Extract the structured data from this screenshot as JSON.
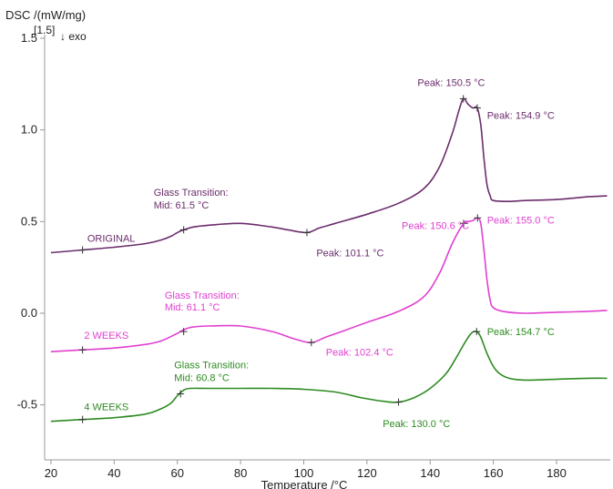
{
  "chart_data": {
    "type": "line",
    "ylabel": "DSC /(mW/mg)",
    "ylabel_sub": "[1.5]",
    "exo_label": "↓ exo",
    "xlabel": "Temperature /°C",
    "xlim": [
      18,
      197
    ],
    "ylim": [
      -0.8,
      1.5
    ],
    "x_ticks": [
      "20",
      "40",
      "60",
      "80",
      "100",
      "120",
      "140",
      "160",
      "180"
    ],
    "y_ticks": [
      "1.5",
      "1.0",
      "0.5",
      "0.0",
      "-0.5"
    ],
    "grid": false,
    "series": [
      {
        "name": "ORIGINAL",
        "color": "#6b2d6b",
        "points": [
          [
            20,
            0.33
          ],
          [
            30,
            0.345
          ],
          [
            40,
            0.36
          ],
          [
            50,
            0.38
          ],
          [
            55,
            0.4
          ],
          [
            58,
            0.42
          ],
          [
            60,
            0.44
          ],
          [
            62,
            0.455
          ],
          [
            65,
            0.47
          ],
          [
            70,
            0.48
          ],
          [
            80,
            0.49
          ],
          [
            90,
            0.47
          ],
          [
            95,
            0.455
          ],
          [
            101,
            0.44
          ],
          [
            105,
            0.465
          ],
          [
            110,
            0.49
          ],
          [
            120,
            0.54
          ],
          [
            130,
            0.6
          ],
          [
            138,
            0.68
          ],
          [
            143,
            0.8
          ],
          [
            147,
            0.98
          ],
          [
            149,
            1.1
          ],
          [
            150.5,
            1.17
          ],
          [
            152,
            1.14
          ],
          [
            153.5,
            1.12
          ],
          [
            154.9,
            1.12
          ],
          [
            156,
            1.03
          ],
          [
            157,
            0.85
          ],
          [
            158,
            0.7
          ],
          [
            159,
            0.64
          ],
          [
            160,
            0.615
          ],
          [
            165,
            0.61
          ],
          [
            170,
            0.615
          ],
          [
            180,
            0.62
          ],
          [
            190,
            0.635
          ],
          [
            196,
            0.64
          ]
        ],
        "markers": [
          [
            30,
            0.345
          ],
          [
            62,
            0.455
          ],
          [
            101,
            0.44
          ],
          [
            150.5,
            1.17
          ],
          [
            154.9,
            1.12
          ]
        ]
      },
      {
        "name": "2 WEEKS",
        "color": "#e040d0",
        "points": [
          [
            20,
            -0.21
          ],
          [
            30,
            -0.2
          ],
          [
            40,
            -0.19
          ],
          [
            50,
            -0.17
          ],
          [
            55,
            -0.15
          ],
          [
            60,
            -0.11
          ],
          [
            62,
            -0.09
          ],
          [
            65,
            -0.075
          ],
          [
            70,
            -0.07
          ],
          [
            80,
            -0.07
          ],
          [
            90,
            -0.1
          ],
          [
            97,
            -0.14
          ],
          [
            102.4,
            -0.16
          ],
          [
            107,
            -0.13
          ],
          [
            112,
            -0.1
          ],
          [
            120,
            -0.05
          ],
          [
            130,
            0.01
          ],
          [
            138,
            0.09
          ],
          [
            143,
            0.22
          ],
          [
            147,
            0.38
          ],
          [
            150.6,
            0.49
          ],
          [
            152,
            0.5
          ],
          [
            153.5,
            0.505
          ],
          [
            155,
            0.52
          ],
          [
            156,
            0.49
          ],
          [
            157,
            0.35
          ],
          [
            158,
            0.18
          ],
          [
            159,
            0.07
          ],
          [
            160,
            0.03
          ],
          [
            163,
            0.01
          ],
          [
            170,
            0.0
          ],
          [
            180,
            0.005
          ],
          [
            190,
            0.01
          ],
          [
            196,
            0.015
          ]
        ],
        "markers": [
          [
            30,
            -0.2
          ],
          [
            62,
            -0.1
          ],
          [
            102.4,
            -0.16
          ],
          [
            150.6,
            0.49
          ],
          [
            155,
            0.52
          ]
        ]
      },
      {
        "name": "4 WEEKS",
        "color": "#2e8b22",
        "points": [
          [
            20,
            -0.59
          ],
          [
            30,
            -0.58
          ],
          [
            40,
            -0.57
          ],
          [
            50,
            -0.55
          ],
          [
            55,
            -0.52
          ],
          [
            58,
            -0.49
          ],
          [
            60,
            -0.45
          ],
          [
            62,
            -0.42
          ],
          [
            64,
            -0.41
          ],
          [
            70,
            -0.41
          ],
          [
            80,
            -0.41
          ],
          [
            90,
            -0.41
          ],
          [
            100,
            -0.415
          ],
          [
            110,
            -0.43
          ],
          [
            118,
            -0.46
          ],
          [
            125,
            -0.48
          ],
          [
            130,
            -0.485
          ],
          [
            135,
            -0.46
          ],
          [
            140,
            -0.41
          ],
          [
            145,
            -0.33
          ],
          [
            148,
            -0.25
          ],
          [
            151,
            -0.16
          ],
          [
            153,
            -0.11
          ],
          [
            154.7,
            -0.1
          ],
          [
            156,
            -0.13
          ],
          [
            158,
            -0.22
          ],
          [
            160,
            -0.29
          ],
          [
            162,
            -0.33
          ],
          [
            165,
            -0.355
          ],
          [
            170,
            -0.365
          ],
          [
            180,
            -0.36
          ],
          [
            190,
            -0.355
          ],
          [
            196,
            -0.355
          ]
        ],
        "markers": [
          [
            30,
            -0.58
          ],
          [
            61,
            -0.44
          ],
          [
            130,
            -0.485
          ],
          [
            154.7,
            -0.1
          ]
        ]
      }
    ],
    "annotations": [
      {
        "text": "ORIGINAL",
        "x": 31.5,
        "y": 0.39,
        "series": 0
      },
      {
        "text": "Glass Transition:",
        "x": 52.5,
        "y": 0.64,
        "series": 0
      },
      {
        "text": "Mid: 61.5 °C",
        "x": 52.5,
        "y": 0.57,
        "series": 0
      },
      {
        "text": "Peak: 101.1 °C",
        "x": 104,
        "y": 0.31,
        "series": 0
      },
      {
        "text": "Peak: 150.5 °C",
        "x": 136,
        "y": 1.24,
        "series": 0
      },
      {
        "text": "Peak: 154.9 °C",
        "x": 158,
        "y": 1.06,
        "series": 0
      },
      {
        "text": "2 WEEKS",
        "x": 30.5,
        "y": -0.14,
        "series": 1
      },
      {
        "text": "Glass Transition:",
        "x": 56,
        "y": 0.08,
        "series": 1
      },
      {
        "text": "Mid: 61.1 °C",
        "x": 56,
        "y": 0.015,
        "series": 1
      },
      {
        "text": "Peak: 102.4 °C",
        "x": 107,
        "y": -0.23,
        "series": 1
      },
      {
        "text": "Peak: 150.6 °C",
        "x": 131,
        "y": 0.46,
        "series": 1
      },
      {
        "text": "Peak: 155.0 °C",
        "x": 158,
        "y": 0.49,
        "series": 1
      },
      {
        "text": "2",
        "x": 0,
        "y": 0,
        "series": -1
      },
      {
        "text": "4 WEEKS",
        "x": 30.5,
        "y": -0.53,
        "series": 2
      },
      {
        "text": "Glass Transition:",
        "x": 59,
        "y": -0.3,
        "series": 2
      },
      {
        "text": "Mid: 60.8 °C",
        "x": 59,
        "y": -0.37,
        "series": 2
      },
      {
        "text": "Peak: 130.0 °C",
        "x": 125,
        "y": -0.62,
        "series": 2
      },
      {
        "text": "Peak: 154.7 °C",
        "x": 158,
        "y": -0.12,
        "series": 2
      }
    ]
  }
}
